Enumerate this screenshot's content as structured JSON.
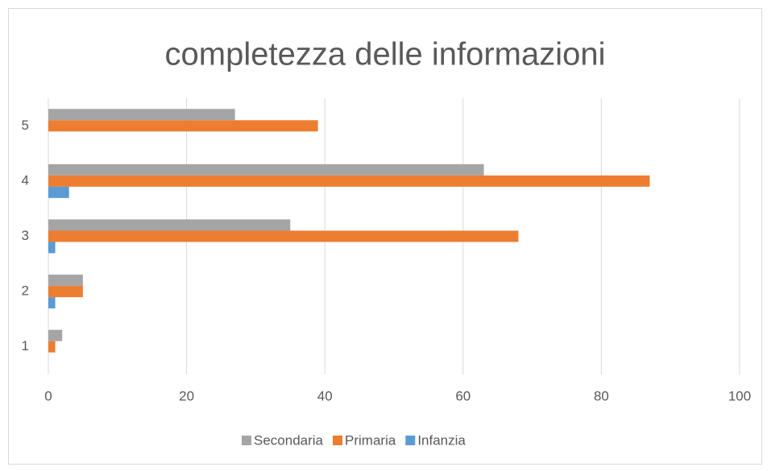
{
  "chart_data": {
    "type": "bar",
    "orientation": "horizontal",
    "title": "completezza delle informazioni",
    "categories": [
      "1",
      "2",
      "3",
      "4",
      "5"
    ],
    "series": [
      {
        "name": "Infanzia",
        "color": "#5b9bd5",
        "values": [
          0,
          1,
          1,
          3,
          0
        ]
      },
      {
        "name": "Primaria",
        "color": "#ed7d31",
        "values": [
          1,
          5,
          68,
          87,
          39
        ]
      },
      {
        "name": "Secondaria",
        "color": "#a5a5a5",
        "values": [
          2,
          5,
          35,
          63,
          27
        ]
      }
    ],
    "xlim": [
      0,
      100
    ],
    "xticks": [
      0,
      20,
      40,
      60,
      80,
      100
    ],
    "grid": true,
    "legend": "bottom"
  }
}
